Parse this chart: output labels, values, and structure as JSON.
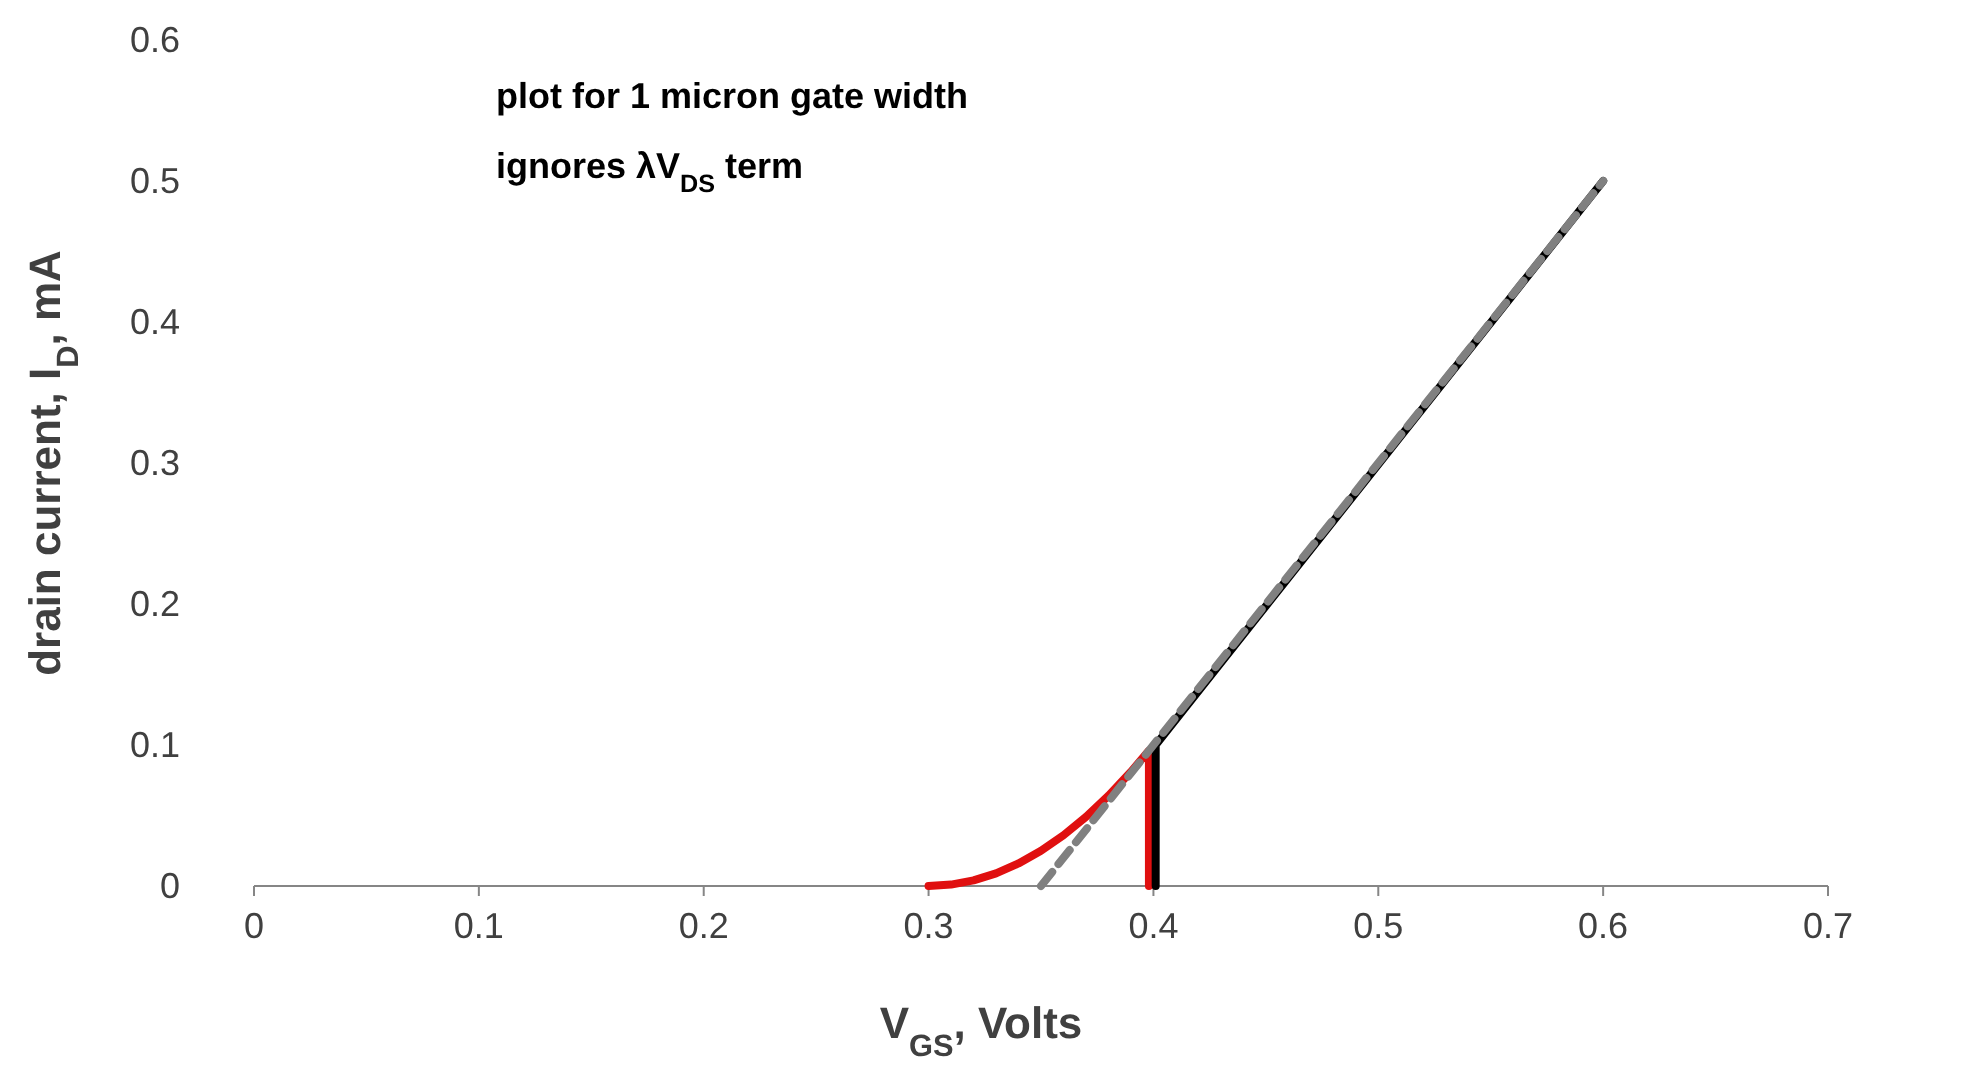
{
  "chart_data": {
    "type": "line",
    "xlabel": "V$_{GS}$, Volts",
    "ylabel": "drain current, I$_{D}$, mA",
    "annotations": [
      "plot for 1 micron gate width",
      "ignores λV$_{DS}$ term"
    ],
    "xlim": [
      0,
      0.7
    ],
    "xticks": [
      0,
      0.1,
      0.2,
      0.3,
      0.4,
      0.5,
      0.6,
      0.7
    ],
    "ylim": [
      0,
      0.6
    ],
    "yticks": [
      0,
      0.1,
      0.2,
      0.3,
      0.4,
      0.5,
      0.6
    ],
    "grid": false,
    "marker": "none",
    "series": [
      {
        "color": "#e01010",
        "line_style": "solid",
        "x": [
          0.3,
          0.31,
          0.32,
          0.33,
          0.34,
          0.35,
          0.36,
          0.37,
          0.38,
          0.39,
          0.398,
          0.398
        ],
        "values": [
          0,
          0.001,
          0.004,
          0.009,
          0.016,
          0.025,
          0.036,
          0.049,
          0.064,
          0.081,
          0.096,
          0
        ]
      },
      {
        "color": "#000000",
        "line_style": "solid",
        "x": [
          0.401,
          0.401,
          0.6
        ],
        "values": [
          0,
          0.1,
          0.5
        ]
      },
      {
        "color": "#808080",
        "line_style": "dashed",
        "x": [
          0.35,
          0.6
        ],
        "values": [
          0,
          0.5
        ]
      }
    ]
  }
}
